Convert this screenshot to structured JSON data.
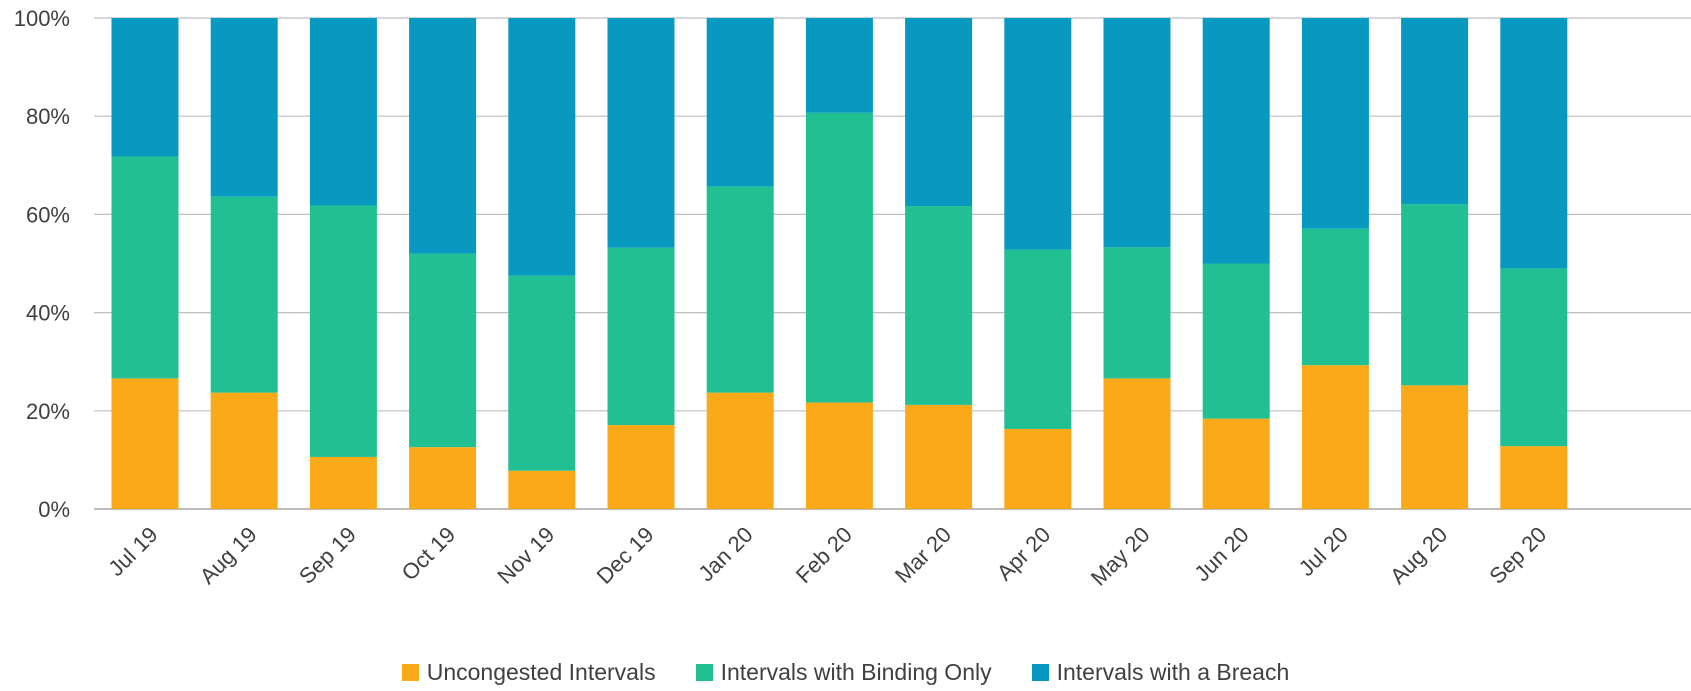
{
  "chart_data": {
    "type": "bar",
    "stacked": true,
    "percent": true,
    "title": "",
    "xlabel": "",
    "ylabel": "",
    "ylim": [
      0,
      100
    ],
    "yticks": [
      "0%",
      "20%",
      "40%",
      "60%",
      "80%",
      "100%"
    ],
    "categories": [
      "Jul 19",
      "Aug 19",
      "Sep 19",
      "Oct 19",
      "Nov 19",
      "Dec 19",
      "Jan 20",
      "Feb 20",
      "Mar 20",
      "Apr 20",
      "May 20",
      "Jun 20",
      "Jul 20",
      "Aug 20",
      "Sep 20"
    ],
    "series": [
      {
        "name": "Uncongested Intervals",
        "color": "#FAAA19",
        "values": [
          26.6,
          23.7,
          10.6,
          12.6,
          7.8,
          17.1,
          23.7,
          21.7,
          21.2,
          16.3,
          26.6,
          18.4,
          29.3,
          25.2,
          12.8
        ]
      },
      {
        "name": "Intervals with Binding Only",
        "color": "#20C093",
        "values": [
          45.2,
          39.9,
          51.2,
          39.4,
          39.7,
          36.1,
          42.0,
          59.0,
          40.5,
          36.5,
          26.7,
          31.6,
          27.8,
          36.9,
          36.2
        ]
      },
      {
        "name": "Intervals with a Breach",
        "color": "#0799BF",
        "values": [
          28.2,
          36.4,
          38.2,
          48.0,
          52.5,
          46.8,
          34.3,
          19.3,
          38.3,
          47.2,
          46.7,
          50.0,
          42.9,
          37.9,
          51.0
        ]
      }
    ],
    "grid": true,
    "legend": "bottom"
  }
}
